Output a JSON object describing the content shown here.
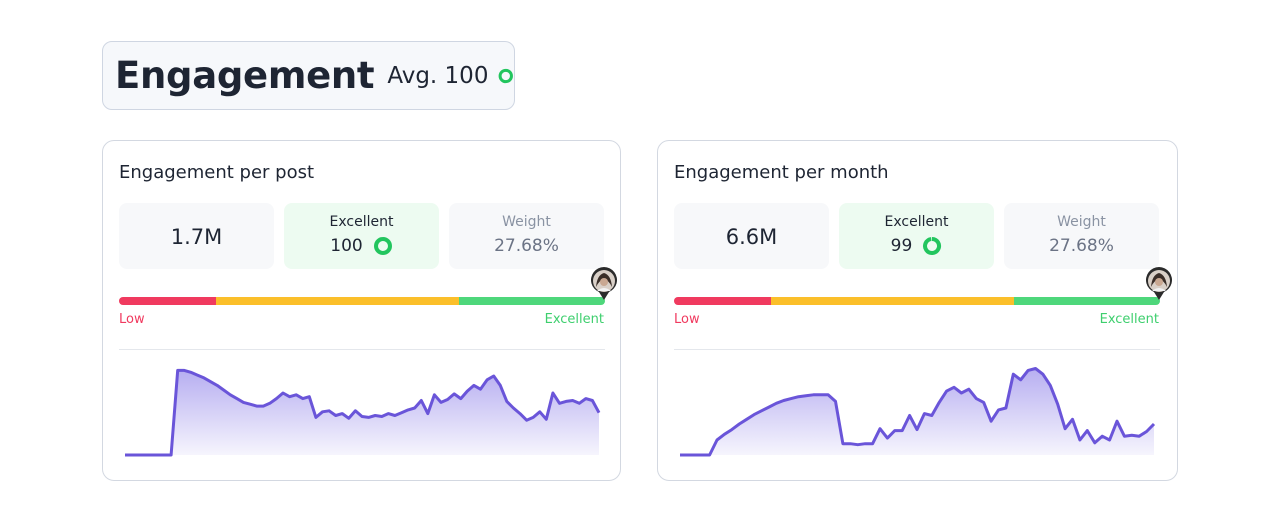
{
  "header": {
    "title": "Engagement",
    "avg_label": "Avg. 100",
    "avg_value": 100,
    "accent": "#22c55e"
  },
  "cards": [
    {
      "title": "Engagement per post",
      "metric_value": "1.7M",
      "rating_label": "Excellent",
      "rating_value": "100",
      "rating_fraction": 1.0,
      "weight_label": "Weight",
      "weight_value": "27.68%",
      "scale_low": "Low",
      "scale_high": "Excellent",
      "marker_fraction": 1.0,
      "sparkline": [
        0.0,
        0.0,
        0.0,
        0.0,
        0.0,
        0.0,
        0.0,
        0.0,
        0.9,
        0.9,
        0.88,
        0.85,
        0.82,
        0.78,
        0.74,
        0.69,
        0.64,
        0.6,
        0.56,
        0.54,
        0.52,
        0.52,
        0.55,
        0.6,
        0.66,
        0.62,
        0.64,
        0.6,
        0.62,
        0.4,
        0.46,
        0.47,
        0.42,
        0.44,
        0.39,
        0.47,
        0.41,
        0.4,
        0.42,
        0.41,
        0.44,
        0.42,
        0.45,
        0.48,
        0.5,
        0.58,
        0.44,
        0.64,
        0.56,
        0.59,
        0.65,
        0.6,
        0.68,
        0.74,
        0.7,
        0.8,
        0.84,
        0.74,
        0.57,
        0.5,
        0.44,
        0.37,
        0.4,
        0.46,
        0.38,
        0.66,
        0.55,
        0.57,
        0.58,
        0.55,
        0.6,
        0.58,
        0.45
      ]
    },
    {
      "title": "Engagement per month",
      "metric_value": "6.6M",
      "rating_label": "Excellent",
      "rating_value": "99",
      "rating_fraction": 0.99,
      "weight_label": "Weight",
      "weight_value": "27.68%",
      "scale_low": "Low",
      "scale_high": "Excellent",
      "marker_fraction": 1.0,
      "sparkline": [
        0.0,
        0.0,
        0.0,
        0.0,
        0.0,
        0.16,
        0.22,
        0.27,
        0.33,
        0.38,
        0.43,
        0.47,
        0.51,
        0.55,
        0.58,
        0.6,
        0.62,
        0.63,
        0.64,
        0.64,
        0.64,
        0.57,
        0.12,
        0.12,
        0.11,
        0.12,
        0.12,
        0.28,
        0.18,
        0.26,
        0.26,
        0.42,
        0.27,
        0.44,
        0.42,
        0.56,
        0.68,
        0.72,
        0.66,
        0.7,
        0.6,
        0.56,
        0.36,
        0.48,
        0.5,
        0.86,
        0.8,
        0.9,
        0.92,
        0.86,
        0.74,
        0.54,
        0.28,
        0.38,
        0.16,
        0.26,
        0.13,
        0.2,
        0.16,
        0.36,
        0.2,
        0.21,
        0.2,
        0.25,
        0.33
      ]
    }
  ],
  "colors": {
    "scale_low": "#f03a5f",
    "scale_mid": "#fbbf2a",
    "scale_high": "#4ed77b",
    "sparkline_stroke": "#6a55d9",
    "sparkline_fill": "#b8b0f0"
  },
  "icons": {
    "rating": "ring-progress-icon",
    "marker": "avatar-pin-icon"
  }
}
